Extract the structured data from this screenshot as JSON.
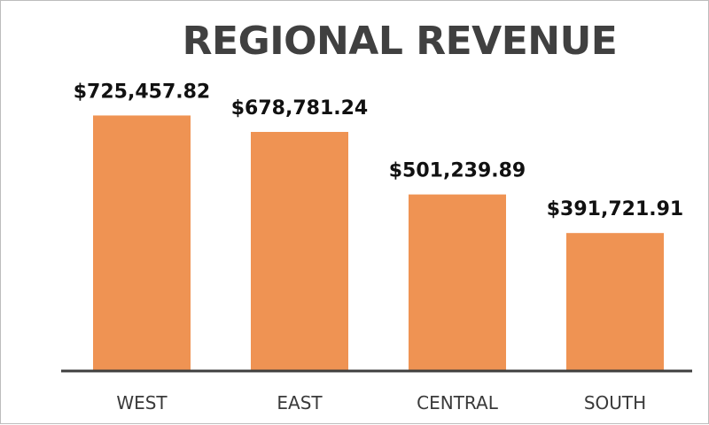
{
  "chart_data": {
    "type": "bar",
    "title": "REGIONAL REVENUE",
    "xlabel": "",
    "ylabel": "",
    "categories": [
      "WEST",
      "EAST",
      "CENTRAL",
      "SOUTH"
    ],
    "values": [
      725457.82,
      678781.24,
      501239.89,
      391721.91
    ],
    "data_labels": [
      "$725,457.82",
      "$678,781.24",
      "$501,239.89",
      "$391,721.91"
    ],
    "ylim": [
      0,
      900000
    ],
    "grid": false,
    "legend": "none",
    "colors": {
      "bar": "#EF9353",
      "axis": "#3f3f3f",
      "title": "#404040"
    }
  }
}
